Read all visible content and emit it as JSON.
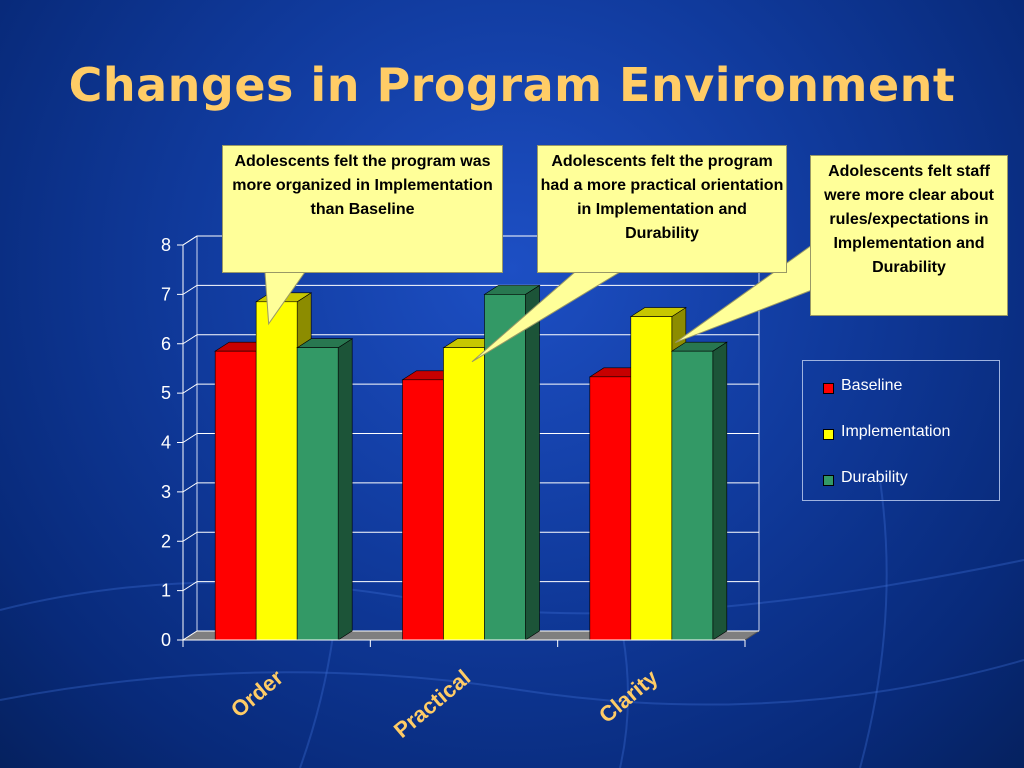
{
  "title": "Changes in Program Environment",
  "callouts": [
    "Adolescents felt the program was more organized in Implementation than Baseline",
    "Adolescents felt the program had a more practical orientation in Implementation and Durability",
    "Adolescents felt staff were more clear about rules/expectations in Implementation and Durability"
  ],
  "chart_data": {
    "type": "bar",
    "categories": [
      "Order",
      "Practical",
      "Clarity"
    ],
    "series": [
      {
        "name": "Baseline",
        "color": "#FF0000",
        "values": [
          5.85,
          5.27,
          5.33
        ]
      },
      {
        "name": "Implementation",
        "color": "#FFFF00",
        "values": [
          6.85,
          5.92,
          6.55
        ]
      },
      {
        "name": "Durability",
        "color": "#339966",
        "values": [
          5.92,
          7.0,
          5.85
        ]
      }
    ],
    "ylim": [
      0,
      8
    ],
    "yticks": [
      "0",
      "1",
      "2",
      "3",
      "4",
      "5",
      "6",
      "7",
      "8"
    ],
    "grid": true,
    "legend_position": "right"
  }
}
